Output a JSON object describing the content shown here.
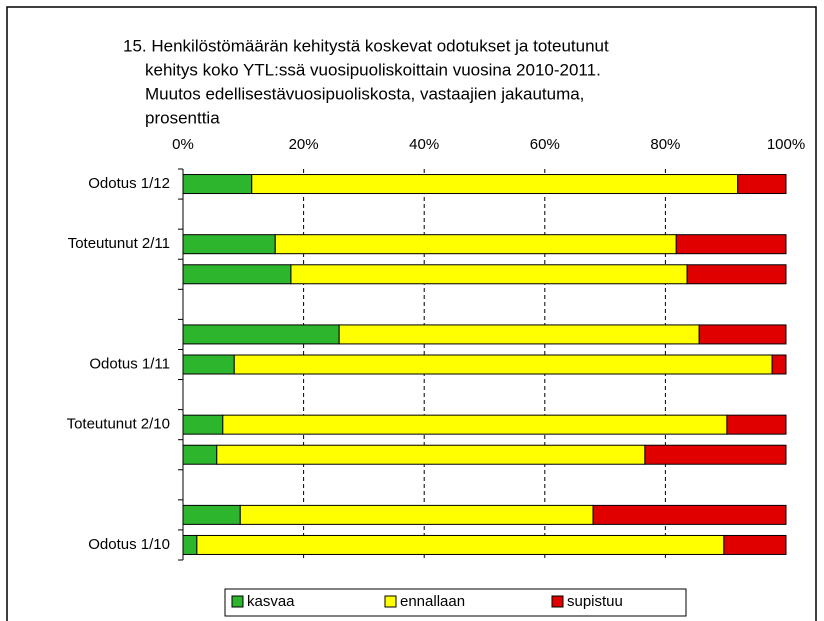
{
  "chart_data": {
    "type": "stacked_bar_horizontal",
    "title": [
      "15. Henkilöstömäärän kehitystä koskevat odotukset ja toteutunut",
      "kehitys koko YTL:ssä vuosipuoliskoittain vuosina 2010-2011.",
      "Muutos edellisestävuosipuoliskosta, vastaajien jakautuma,",
      "prosenttia"
    ],
    "categories": [
      "Odotus 1/12",
      null,
      "Toteutunut 2/11",
      null,
      null,
      null,
      "Odotus 1/11",
      null,
      "Toteutunut 2/10",
      null,
      null,
      null,
      "Odotus 1/10"
    ],
    "series": [
      {
        "name": "kasvaa",
        "color": "#2db52d",
        "values": [
          11.4,
          null,
          15.3,
          17.9,
          null,
          25.9,
          8.5,
          null,
          6.6,
          5.6,
          null,
          9.5,
          2.3
        ]
      },
      {
        "name": "ennallaan",
        "color": "#ffff00",
        "values": [
          80.6,
          null,
          66.5,
          65.7,
          null,
          59.7,
          89.2,
          null,
          83.6,
          71.0,
          null,
          58.5,
          87.4
        ]
      },
      {
        "name": "supistuu",
        "color": "#e00000",
        "values": [
          8.0,
          null,
          18.2,
          16.4,
          null,
          14.4,
          2.3,
          null,
          9.8,
          23.4,
          null,
          32.0,
          10.3
        ]
      }
    ],
    "xlim": [
      0,
      100
    ],
    "xticks": [
      {
        "value": 0,
        "label": "0%"
      },
      {
        "value": 20,
        "label": "20%"
      },
      {
        "value": 40,
        "label": "40%"
      },
      {
        "value": 60,
        "label": "60%"
      },
      {
        "value": 80,
        "label": "80%"
      },
      {
        "value": 100,
        "label": "100%"
      }
    ],
    "grid": true,
    "legend": "bottom"
  }
}
